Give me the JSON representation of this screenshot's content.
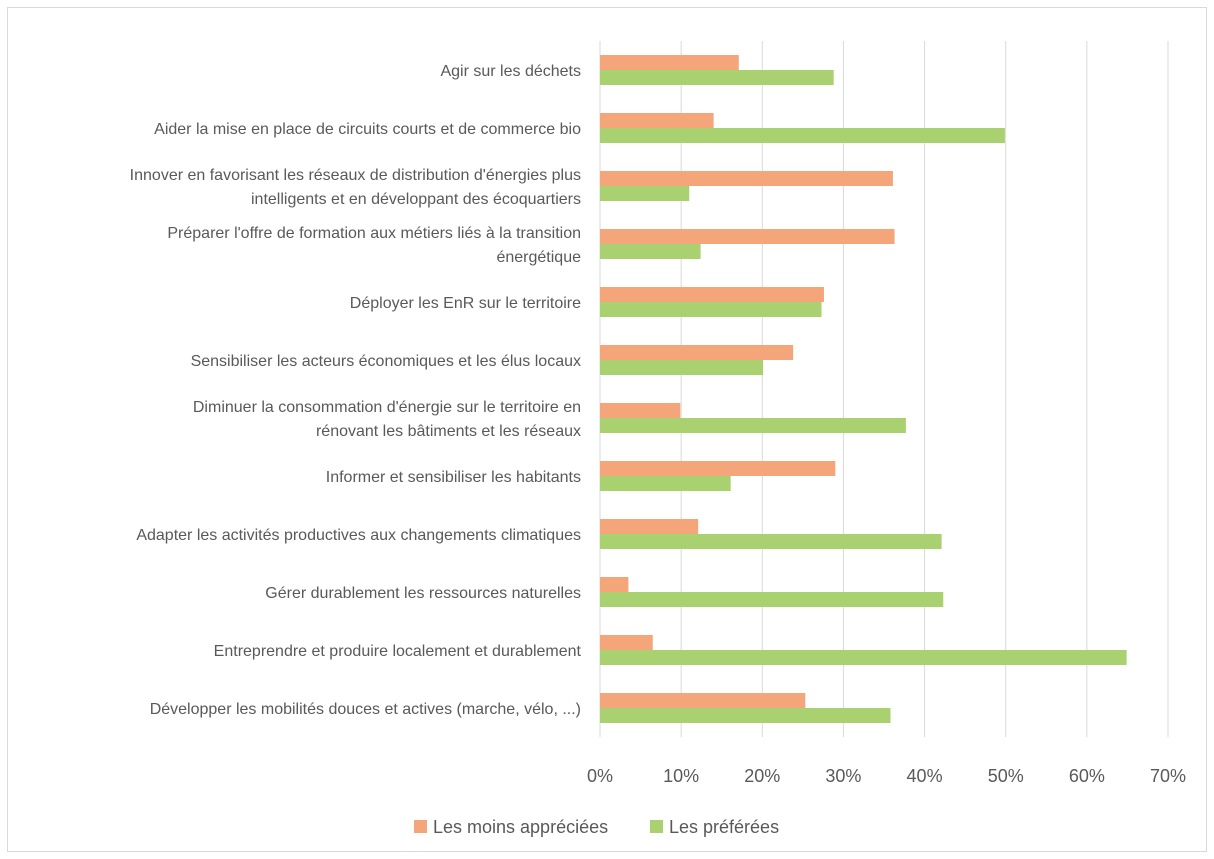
{
  "chart_data": {
    "type": "bar",
    "orientation": "horizontal",
    "title": "",
    "categories": [
      [
        "Agir sur les déchets"
      ],
      [
        "Aider la mise en place de circuits courts et de commerce bio"
      ],
      [
        "Innover en favorisant les réseaux de distribution d'énergies plus",
        "intelligents et en développant des écoquartiers"
      ],
      [
        "Préparer l'offre de formation aux métiers liés à la transition",
        "énergétique"
      ],
      [
        "Déployer les EnR sur le territoire"
      ],
      [
        "Sensibiliser les acteurs économiques et les élus locaux"
      ],
      [
        "Diminuer la consommation d'énergie sur le territoire en",
        "rénovant les bâtiments et les réseaux"
      ],
      [
        "Informer et sensibiliser les habitants"
      ],
      [
        "Adapter les activités productives aux changements climatiques"
      ],
      [
        "Gérer durablement les ressources naturelles"
      ],
      [
        "Entreprendre et produire localement et durablement"
      ],
      [
        "Développer les mobilités douces et actives (marche, vélo, ...)"
      ]
    ],
    "series": [
      {
        "name": "Les moins appréciées",
        "color": "#f4a57a",
        "values": [
          17.1,
          14.0,
          36.1,
          36.3,
          27.6,
          23.8,
          9.9,
          29.0,
          12.1,
          3.5,
          6.5,
          25.3
        ]
      },
      {
        "name": "Les préférées",
        "color": "#a9d16f",
        "values": [
          28.8,
          49.9,
          11.0,
          12.4,
          27.3,
          20.1,
          37.7,
          16.1,
          42.1,
          42.3,
          64.9,
          35.8
        ]
      }
    ],
    "xlim": [
      0,
      70
    ],
    "x_ticks": [
      "0%",
      "10%",
      "20%",
      "30%",
      "40%",
      "50%",
      "60%",
      "70%"
    ],
    "grid": true,
    "legend_position": "bottom"
  }
}
